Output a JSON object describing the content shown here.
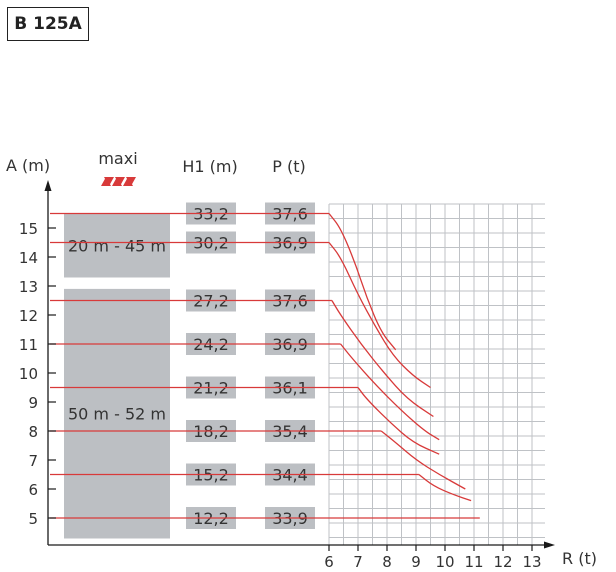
{
  "header": {
    "model": "B 125A"
  },
  "chart_data": {
    "type": "line",
    "title": "",
    "xlabel": "R (t)",
    "ylabel": "A (m)",
    "x_ticks": [
      "6",
      "7",
      "8",
      "9",
      "10",
      "11",
      "12",
      "13"
    ],
    "y_ticks": [
      "5",
      "6",
      "7",
      "8",
      "9",
      "10",
      "11",
      "12",
      "13",
      "14",
      "15"
    ],
    "xlim": [
      6,
      13
    ],
    "ylim": [
      4.5,
      15.5
    ],
    "grid": true,
    "headers": {
      "maxi": "maxi",
      "h1": "H1 (m)",
      "p": "P (t)"
    },
    "groups": [
      {
        "label": "20 m - 45 m",
        "y_range": [
          13.5,
          15.5
        ]
      },
      {
        "label": "50 m - 52 m",
        "y_range": [
          4.5,
          12.9
        ]
      }
    ],
    "series": [
      {
        "A": 15.5,
        "H1": "33,2",
        "P": "37,6",
        "curve": [
          [
            6,
            15.5
          ],
          [
            6.4,
            15.0
          ],
          [
            6.9,
            13.8
          ],
          [
            7.3,
            12.6
          ],
          [
            7.8,
            11.4
          ],
          [
            8.3,
            10.8
          ]
        ]
      },
      {
        "A": 14.5,
        "H1": "30,2",
        "P": "36,9",
        "curve": [
          [
            6,
            14.5
          ],
          [
            6.4,
            14.0
          ],
          [
            7.0,
            12.7
          ],
          [
            7.6,
            11.6
          ],
          [
            8.2,
            10.6
          ],
          [
            8.9,
            9.9
          ],
          [
            9.5,
            9.5
          ]
        ]
      },
      {
        "A": 12.5,
        "H1": "27,2",
        "P": "37,6",
        "curve": [
          [
            6.1,
            12.5
          ],
          [
            6.4,
            12.0
          ],
          [
            7.1,
            11.0
          ],
          [
            7.9,
            10.0
          ],
          [
            8.7,
            9.1
          ],
          [
            9.6,
            8.5
          ]
        ]
      },
      {
        "A": 11.0,
        "H1": "24,2",
        "P": "36,9",
        "curve": [
          [
            6.4,
            11.0
          ],
          [
            6.8,
            10.5
          ],
          [
            7.6,
            9.6
          ],
          [
            8.5,
            8.7
          ],
          [
            9.3,
            8.0
          ],
          [
            9.8,
            7.7
          ]
        ]
      },
      {
        "A": 9.5,
        "H1": "21,2",
        "P": "36,1",
        "curve": [
          [
            7.0,
            9.5
          ],
          [
            7.3,
            9.1
          ],
          [
            8.1,
            8.3
          ],
          [
            8.9,
            7.6
          ],
          [
            9.8,
            7.2
          ]
        ]
      },
      {
        "A": 8.0,
        "H1": "18,2",
        "P": "35,4",
        "curve": [
          [
            7.8,
            8.0
          ],
          [
            8.3,
            7.6
          ],
          [
            9.0,
            7.0
          ],
          [
            9.8,
            6.5
          ],
          [
            10.7,
            6.0
          ]
        ]
      },
      {
        "A": 6.5,
        "H1": "15,2",
        "P": "34,4",
        "curve": [
          [
            9.1,
            6.5
          ],
          [
            9.6,
            6.1
          ],
          [
            10.3,
            5.8
          ],
          [
            10.9,
            5.6
          ]
        ]
      },
      {
        "A": 5.0,
        "H1": "12,2",
        "P": "33,9",
        "curve": [
          [
            11.2,
            5.0
          ]
        ]
      }
    ],
    "colors": {
      "grid": "#bfc2c6",
      "box": "#bcbfc3",
      "line": "#d83a3a",
      "axis": "#1a1a1a",
      "text": "#333333"
    }
  }
}
